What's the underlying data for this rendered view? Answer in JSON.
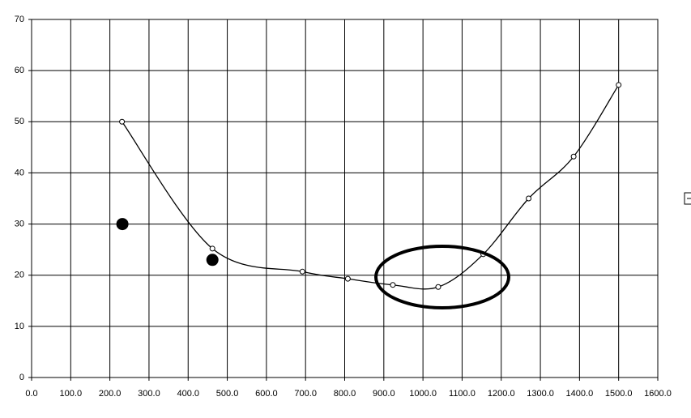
{
  "chart_data": {
    "type": "scatter",
    "xlim": [
      0,
      1600
    ],
    "xticks": [
      {
        "value": 0,
        "label": "0.0"
      },
      {
        "value": 100,
        "label": "100.0"
      },
      {
        "value": 200,
        "label": "200.0"
      },
      {
        "value": 300,
        "label": "300.0"
      },
      {
        "value": 400,
        "label": "400.0"
      },
      {
        "value": 500,
        "label": "500.0"
      },
      {
        "value": 600,
        "label": "600.0"
      },
      {
        "value": 700,
        "label": "700.0"
      },
      {
        "value": 800,
        "label": "800.0"
      },
      {
        "value": 900,
        "label": "900.0"
      },
      {
        "value": 1000,
        "label": "1000.0"
      },
      {
        "value": 1100,
        "label": "1100.0"
      },
      {
        "value": 1200,
        "label": "1200.0"
      },
      {
        "value": 1300,
        "label": "1300.0"
      },
      {
        "value": 1400,
        "label": "1400.0"
      },
      {
        "value": 1500,
        "label": "1500.0"
      },
      {
        "value": 1600,
        "label": "1600.0"
      }
    ],
    "ylim": [
      0,
      70
    ],
    "yticks": [
      0,
      10,
      20,
      30,
      40,
      50,
      60,
      70
    ],
    "grid": true,
    "series": [
      {
        "color": "#000000",
        "line": true,
        "smooth": true,
        "marker": "open",
        "x": [
          231,
          462,
          692,
          808,
          923,
          1039,
          1154,
          1270,
          1385,
          1500
        ],
        "values": [
          50,
          25.2,
          20.7,
          19.3,
          18.1,
          17.7,
          24.1,
          35.0,
          43.2,
          57.2
        ]
      },
      {
        "color": "#000000",
        "line": false,
        "smooth": false,
        "marker": "filled",
        "x": [
          232,
          462
        ],
        "values": [
          30,
          23
        ]
      }
    ]
  }
}
